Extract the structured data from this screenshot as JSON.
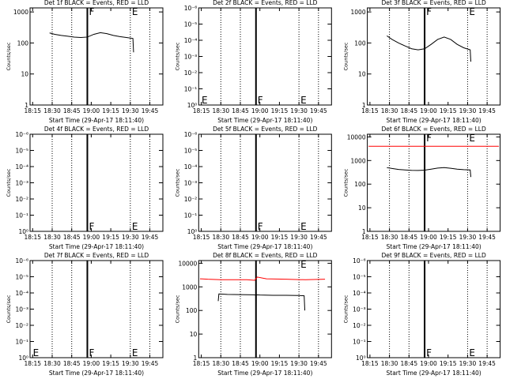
{
  "chart_data": [
    {
      "type": "line",
      "title": "Det 1f BLACK = Events, RED = LLD",
      "xlabel": "Start Time (29-Apr-17 18:11:40)",
      "ylabel": "Counts/sec",
      "xlim": [
        1093,
        1195
      ],
      "xticks": [
        {
          "value": 1095,
          "label": "18:15"
        },
        {
          "value": 1110,
          "label": "18:30"
        },
        {
          "value": 1125,
          "label": "18:45"
        },
        {
          "value": 1140,
          "label": "19:00"
        },
        {
          "value": 1155,
          "label": "19:15"
        },
        {
          "value": 1170,
          "label": "19:30"
        },
        {
          "value": 1185,
          "label": "19:45"
        }
      ],
      "ylim": [
        1,
        1350
      ],
      "yticks": [
        1,
        10,
        100,
        1000
      ],
      "log_y": true,
      "dotted_lines": [
        1110,
        1125,
        1170,
        1185
      ],
      "solid_lines": [
        1137
      ],
      "annotations": [
        {
          "text": "F",
          "x": 1137,
          "y": 1000
        },
        {
          "text": "E",
          "x": 1170,
          "y": 1000
        }
      ],
      "series": [
        {
          "color": "#000000",
          "x": [
            1108,
            1112,
            1117,
            1122,
            1127,
            1132,
            1137,
            1142,
            1147,
            1152,
            1157,
            1162,
            1167,
            1172,
            1172.5
          ],
          "values": [
            210,
            190,
            175,
            165,
            155,
            150,
            155,
            190,
            215,
            200,
            175,
            160,
            150,
            140,
            50
          ]
        }
      ]
    },
    {
      "type": "line",
      "title": "Det 2f BLACK = Events, RED = LLD",
      "xlabel": "Start Time (29-Apr-17 18:11:40)",
      "ylabel": "Counts/sec",
      "xlim": [
        1093,
        1195
      ],
      "xticks": [
        {
          "value": 1095,
          "label": "18:15"
        },
        {
          "value": 1110,
          "label": "18:30"
        },
        {
          "value": 1125,
          "label": "18:45"
        },
        {
          "value": 1140,
          "label": "19:00"
        },
        {
          "value": 1155,
          "label": "19:15"
        },
        {
          "value": 1170,
          "label": "19:30"
        },
        {
          "value": 1185,
          "label": "19:45"
        }
      ],
      "ylim": [
        1,
        1e-06
      ],
      "yticks": [
        {
          "value": 1,
          "label": "10⁰"
        },
        {
          "value": 0.1,
          "label": "10⁻¹"
        },
        {
          "value": 0.01,
          "label": "10⁻²"
        },
        {
          "value": 0.001,
          "label": "10⁻³"
        },
        {
          "value": 0.0001,
          "label": "10⁻⁴"
        },
        {
          "value": 1e-05,
          "label": "10⁻⁵"
        },
        {
          "value": 1e-06,
          "label": "10⁻⁶"
        }
      ],
      "log_y": true,
      "dotted_lines": [
        1110,
        1125,
        1170,
        1185
      ],
      "solid_lines": [
        1137
      ],
      "annotations": [
        {
          "text": "E",
          "x": 1094,
          "y": 0.5
        },
        {
          "text": "F",
          "x": 1137,
          "y": 0.5
        },
        {
          "text": "E",
          "x": 1170,
          "y": 0.5
        }
      ],
      "series": []
    },
    {
      "type": "line",
      "title": "Det 3f BLACK = Events, RED = LLD",
      "xlabel": "Start Time (29-Apr-17 18:11:40)",
      "ylabel": "Counts/sec",
      "xlim": [
        1093,
        1195
      ],
      "xticks": [
        {
          "value": 1095,
          "label": "18:15"
        },
        {
          "value": 1110,
          "label": "18:30"
        },
        {
          "value": 1125,
          "label": "18:45"
        },
        {
          "value": 1140,
          "label": "19:00"
        },
        {
          "value": 1155,
          "label": "19:15"
        },
        {
          "value": 1170,
          "label": "19:30"
        },
        {
          "value": 1185,
          "label": "19:45"
        }
      ],
      "ylim": [
        1,
        1350
      ],
      "yticks": [
        1,
        10,
        100,
        1000
      ],
      "log_y": true,
      "dotted_lines": [
        1110,
        1125,
        1170,
        1185
      ],
      "solid_lines": [
        1137
      ],
      "annotations": [
        {
          "text": "F",
          "x": 1137,
          "y": 1000
        },
        {
          "text": "E",
          "x": 1170,
          "y": 1000
        }
      ],
      "series": [
        {
          "color": "#000000",
          "x": [
            1108,
            1112,
            1117,
            1122,
            1127,
            1132,
            1137,
            1142,
            1147,
            1152,
            1157,
            1162,
            1167,
            1172,
            1172.5
          ],
          "values": [
            170,
            130,
            100,
            80,
            65,
            60,
            65,
            90,
            130,
            155,
            130,
            90,
            70,
            60,
            25
          ]
        }
      ]
    },
    {
      "type": "line",
      "title": "Det 4f BLACK = Events, RED = LLD",
      "xlabel": "Start Time (29-Apr-17 18:11:40)",
      "ylabel": "Counts/sec",
      "xlim": [
        1093,
        1195
      ],
      "xticks": [
        {
          "value": 1095,
          "label": "18:15"
        },
        {
          "value": 1110,
          "label": "18:30"
        },
        {
          "value": 1125,
          "label": "18:45"
        },
        {
          "value": 1140,
          "label": "19:00"
        },
        {
          "value": 1155,
          "label": "19:15"
        },
        {
          "value": 1170,
          "label": "19:30"
        },
        {
          "value": 1185,
          "label": "19:45"
        }
      ],
      "ylim": [
        1,
        1e-06
      ],
      "yticks": [
        {
          "value": 1,
          "label": "10⁰"
        },
        {
          "value": 0.1,
          "label": "10⁻¹"
        },
        {
          "value": 0.01,
          "label": "10⁻²"
        },
        {
          "value": 0.001,
          "label": "10⁻³"
        },
        {
          "value": 0.0001,
          "label": "10⁻⁴"
        },
        {
          "value": 1e-05,
          "label": "10⁻⁵"
        },
        {
          "value": 1e-06,
          "label": "10⁻⁶"
        }
      ],
      "log_y": true,
      "dotted_lines": [
        1110,
        1125,
        1170,
        1185
      ],
      "solid_lines": [
        1137
      ],
      "annotations": [
        {
          "text": "F",
          "x": 1137,
          "y": 0.5
        },
        {
          "text": "E",
          "x": 1170,
          "y": 0.5
        }
      ],
      "series": []
    },
    {
      "type": "line",
      "title": "Det 5f BLACK = Events, RED = LLD",
      "xlabel": "Start Time (29-Apr-17 18:11:40)",
      "ylabel": "Counts/sec",
      "xlim": [
        1093,
        1195
      ],
      "xticks": [
        {
          "value": 1095,
          "label": "18:15"
        },
        {
          "value": 1110,
          "label": "18:30"
        },
        {
          "value": 1125,
          "label": "18:45"
        },
        {
          "value": 1140,
          "label": "19:00"
        },
        {
          "value": 1155,
          "label": "19:15"
        },
        {
          "value": 1170,
          "label": "19:30"
        },
        {
          "value": 1185,
          "label": "19:45"
        }
      ],
      "ylim": [
        1,
        1e-06
      ],
      "yticks": [
        {
          "value": 1,
          "label": "10⁰"
        },
        {
          "value": 0.1,
          "label": "10⁻¹"
        },
        {
          "value": 0.01,
          "label": "10⁻²"
        },
        {
          "value": 0.001,
          "label": "10⁻³"
        },
        {
          "value": 0.0001,
          "label": "10⁻⁴"
        },
        {
          "value": 1e-05,
          "label": "10⁻⁵"
        },
        {
          "value": 1e-06,
          "label": "10⁻⁶"
        }
      ],
      "log_y": true,
      "dotted_lines": [
        1110,
        1125,
        1170,
        1185
      ],
      "solid_lines": [
        1137
      ],
      "annotations": [
        {
          "text": "F",
          "x": 1137,
          "y": 0.5
        },
        {
          "text": "E",
          "x": 1170,
          "y": 0.5
        }
      ],
      "series": []
    },
    {
      "type": "line",
      "title": "Det 6f BLACK = Events, RED = LLD",
      "xlabel": "Start Time (29-Apr-17 18:11:40)",
      "ylabel": "Counts/sec",
      "xlim": [
        1093,
        1195
      ],
      "xticks": [
        {
          "value": 1095,
          "label": "18:15"
        },
        {
          "value": 1110,
          "label": "18:30"
        },
        {
          "value": 1125,
          "label": "18:45"
        },
        {
          "value": 1140,
          "label": "19:00"
        },
        {
          "value": 1155,
          "label": "19:15"
        },
        {
          "value": 1170,
          "label": "19:30"
        },
        {
          "value": 1185,
          "label": "19:45"
        }
      ],
      "ylim": [
        1,
        13000
      ],
      "yticks": [
        1,
        10,
        100,
        1000,
        10000
      ],
      "log_y": true,
      "dotted_lines": [
        1110,
        1125,
        1170,
        1185
      ],
      "solid_lines": [
        1137
      ],
      "annotations": [
        {
          "text": "F",
          "x": 1137,
          "y": 9000
        },
        {
          "text": "E",
          "x": 1170,
          "y": 9000
        }
      ],
      "series": [
        {
          "color": "#ff0000",
          "x": [
            1094,
            1194
          ],
          "values": [
            4000,
            4000
          ]
        },
        {
          "color": "#000000",
          "x": [
            1108,
            1112,
            1117,
            1122,
            1127,
            1132,
            1137,
            1142,
            1147,
            1152,
            1157,
            1162,
            1167,
            1172,
            1172.5
          ],
          "values": [
            500,
            460,
            420,
            400,
            385,
            380,
            390,
            430,
            480,
            500,
            470,
            430,
            410,
            400,
            200
          ]
        }
      ]
    },
    {
      "type": "line",
      "title": "Det 7f BLACK = Events, RED = LLD",
      "xlabel": "Start Time (29-Apr-17 18:11:40)",
      "ylabel": "Counts/sec",
      "xlim": [
        1093,
        1195
      ],
      "xticks": [
        {
          "value": 1095,
          "label": "18:15"
        },
        {
          "value": 1110,
          "label": "18:30"
        },
        {
          "value": 1125,
          "label": "18:45"
        },
        {
          "value": 1140,
          "label": "19:00"
        },
        {
          "value": 1155,
          "label": "19:15"
        },
        {
          "value": 1170,
          "label": "19:30"
        },
        {
          "value": 1185,
          "label": "19:45"
        }
      ],
      "ylim": [
        1,
        1e-06
      ],
      "yticks": [
        {
          "value": 1,
          "label": "10⁰"
        },
        {
          "value": 0.1,
          "label": "10⁻¹"
        },
        {
          "value": 0.01,
          "label": "10⁻²"
        },
        {
          "value": 0.001,
          "label": "10⁻³"
        },
        {
          "value": 0.0001,
          "label": "10⁻⁴"
        },
        {
          "value": 1e-05,
          "label": "10⁻⁵"
        },
        {
          "value": 1e-06,
          "label": "10⁻⁶"
        }
      ],
      "log_y": true,
      "dotted_lines": [
        1110,
        1125,
        1170,
        1185
      ],
      "solid_lines": [
        1137
      ],
      "annotations": [
        {
          "text": "E",
          "x": 1094,
          "y": 0.5
        },
        {
          "text": "F",
          "x": 1137,
          "y": 0.5
        },
        {
          "text": "E",
          "x": 1170,
          "y": 0.5
        }
      ],
      "series": []
    },
    {
      "type": "line",
      "title": "Det 8f BLACK = Events, RED = LLD",
      "xlabel": "Start Time (29-Apr-17 18:11:40)",
      "ylabel": "Counts/sec",
      "xlim": [
        1093,
        1195
      ],
      "xticks": [
        {
          "value": 1095,
          "label": "18:15"
        },
        {
          "value": 1110,
          "label": "18:30"
        },
        {
          "value": 1125,
          "label": "18:45"
        },
        {
          "value": 1140,
          "label": "19:00"
        },
        {
          "value": 1155,
          "label": "19:15"
        },
        {
          "value": 1170,
          "label": "19:30"
        },
        {
          "value": 1185,
          "label": "19:45"
        }
      ],
      "ylim": [
        1,
        13000
      ],
      "yticks": [
        1,
        10,
        100,
        1000,
        10000
      ],
      "log_y": true,
      "dotted_lines": [
        1110,
        1125,
        1170,
        1185
      ],
      "solid_lines": [
        1137
      ],
      "annotations": [
        {
          "text": "E",
          "x": 1170,
          "y": 9000
        }
      ],
      "series": [
        {
          "color": "#ff0000",
          "x": [
            1094,
            1100,
            1110,
            1120,
            1130,
            1136,
            1138,
            1145,
            1160,
            1175,
            1190
          ],
          "values": [
            2200,
            2100,
            2000,
            2000,
            2000,
            1900,
            2600,
            2200,
            2100,
            2000,
            2100
          ]
        },
        {
          "color": "#000000",
          "x": [
            1108,
            1108.5,
            1115,
            1125,
            1135,
            1136.8,
            1137,
            1137.2,
            1140,
            1150,
            1160,
            1170,
            1174,
            1174.5
          ],
          "values": [
            250,
            500,
            480,
            470,
            460,
            450,
            10,
            460,
            450,
            440,
            440,
            430,
            420,
            100
          ]
        }
      ]
    },
    {
      "type": "line",
      "title": "Det 9f BLACK = Events, RED = LLD",
      "xlabel": "Start Time (29-Apr-17 18:11:40)",
      "ylabel": "Counts/sec",
      "xlim": [
        1093,
        1195
      ],
      "xticks": [
        {
          "value": 1095,
          "label": "18:15"
        },
        {
          "value": 1110,
          "label": "18:30"
        },
        {
          "value": 1125,
          "label": "18:45"
        },
        {
          "value": 1140,
          "label": "19:00"
        },
        {
          "value": 1155,
          "label": "19:15"
        },
        {
          "value": 1170,
          "label": "19:30"
        },
        {
          "value": 1185,
          "label": "19:45"
        }
      ],
      "ylim": [
        1,
        1e-06
      ],
      "yticks": [
        {
          "value": 1,
          "label": "10⁰"
        },
        {
          "value": 0.1,
          "label": "10⁻¹"
        },
        {
          "value": 0.01,
          "label": "10⁻²"
        },
        {
          "value": 0.001,
          "label": "10⁻³"
        },
        {
          "value": 0.0001,
          "label": "10⁻⁴"
        },
        {
          "value": 1e-05,
          "label": "10⁻⁵"
        },
        {
          "value": 1e-06,
          "label": "10⁻⁶"
        }
      ],
      "log_y": true,
      "dotted_lines": [
        1110,
        1125,
        1170,
        1185
      ],
      "solid_lines": [
        1137
      ],
      "annotations": [
        {
          "text": "F",
          "x": 1137,
          "y": 0.5
        },
        {
          "text": "E",
          "x": 1170,
          "y": 0.5
        }
      ],
      "series": []
    }
  ]
}
